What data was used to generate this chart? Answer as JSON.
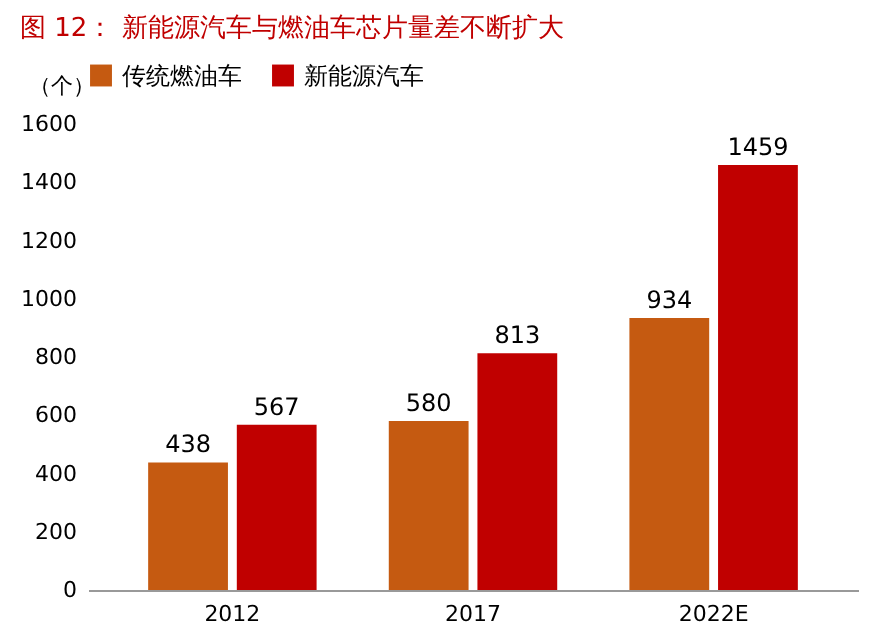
{
  "chart_data": {
    "type": "bar",
    "title": "图 12：  新能源汽车与燃油车芯片量差不断扩大",
    "ylabel": "（个）",
    "categories": [
      "2012",
      "2017",
      "2022E"
    ],
    "series": [
      {
        "name": "传统燃油车",
        "color": "#c55a11",
        "values": [
          438,
          580,
          934
        ]
      },
      {
        "name": "新能源汽车",
        "color": "#c00000",
        "values": [
          567,
          813,
          1459
        ]
      }
    ],
    "ylim": [
      0,
      1600
    ],
    "yticks": [
      0,
      200,
      400,
      600,
      800,
      1000,
      1200,
      1400,
      1600
    ],
    "data_labels": true,
    "legend": "top",
    "grid": false
  }
}
